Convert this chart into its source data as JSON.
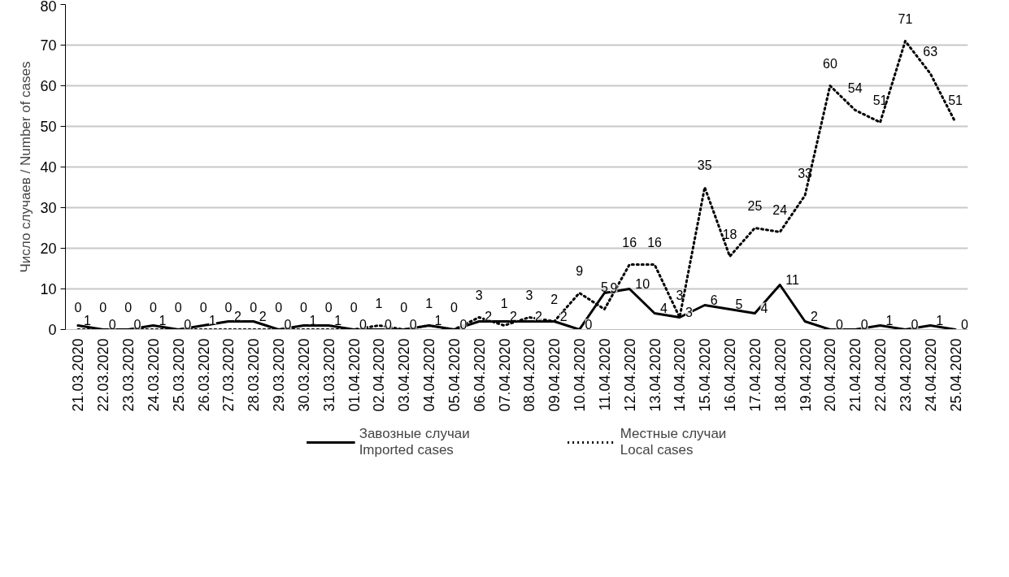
{
  "chart_data": {
    "type": "line",
    "ylabel": "Число случаев / Number of cases",
    "categories": [
      "21.03.2020",
      "22.03.2020",
      "23.03.2020",
      "24.03.2020",
      "25.03.2020",
      "26.03.2020",
      "27.03.2020",
      "28.03.2020",
      "29.03.2020",
      "30.03.2020",
      "31.03.2020",
      "01.04.2020",
      "02.04.2020",
      "03.04.2020",
      "04.04.2020",
      "05.04.2020",
      "06.04.2020",
      "07.04.2020",
      "08.04.2020",
      "09.04.2020",
      "10.04.2020",
      "11.04.2020",
      "12.04.2020",
      "13.04.2020",
      "14.04.2020",
      "15.04.2020",
      "16.04.2020",
      "17.04.2020",
      "18.04.2020",
      "19.04.2020",
      "20.04.2020",
      "21.04.2020",
      "22.04.2020",
      "23.04.2020",
      "24.04.2020",
      "25.04.2020"
    ],
    "series": [
      {
        "name": "Завозные случаи\nImported cases",
        "color": "#000000",
        "line_style": "solid",
        "values": [
          1,
          0,
          0,
          1,
          0,
          1,
          2,
          2,
          0,
          1,
          1,
          0,
          0,
          0,
          1,
          0,
          2,
          2,
          2,
          2,
          0,
          9,
          10,
          4,
          3,
          6,
          5,
          4,
          11,
          2,
          0,
          0,
          1,
          0,
          1,
          0
        ]
      },
      {
        "name": "Местные случаи\nLocal cases",
        "color": "#000000",
        "line_style": "dotted",
        "values": [
          0,
          0,
          0,
          0,
          0,
          0,
          0,
          0,
          0,
          0,
          0,
          0,
          1,
          0,
          1,
          0,
          3,
          1,
          3,
          2,
          9,
          5,
          16,
          16,
          3,
          35,
          18,
          25,
          24,
          33,
          60,
          54,
          51,
          71,
          63,
          51
        ]
      }
    ],
    "ylim": [
      0,
      80
    ],
    "yticks": [
      0,
      10,
      20,
      30,
      40,
      50,
      60,
      70,
      80
    ],
    "grid": "y",
    "legend": "bottom",
    "data_labels": true
  }
}
